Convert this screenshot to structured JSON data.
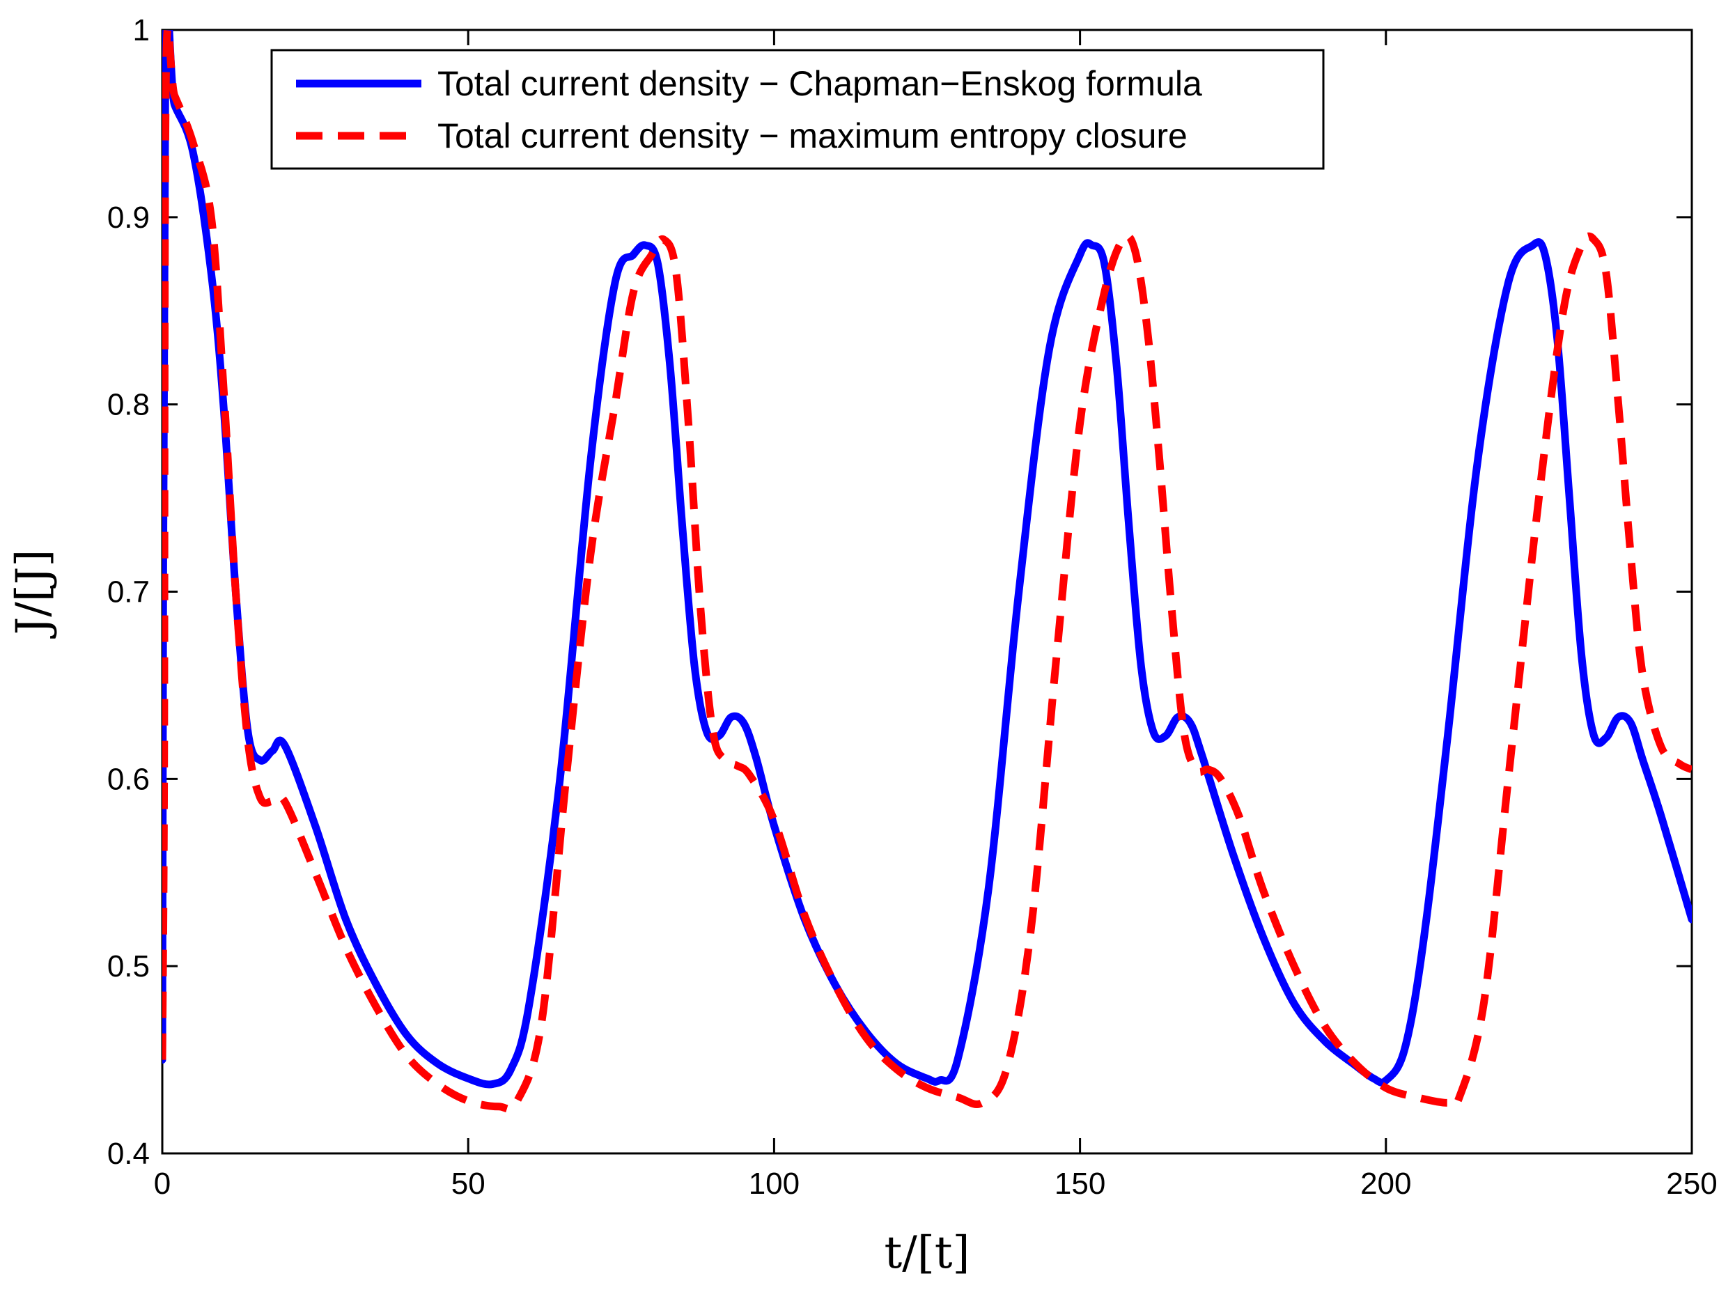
{
  "chart_data": {
    "type": "line",
    "title": "",
    "xlabel": "t/[t]",
    "ylabel": "J/[J]",
    "xlim": [
      0,
      250
    ],
    "ylim": [
      0.4,
      1.0
    ],
    "xticks": [
      0,
      50,
      100,
      150,
      200,
      250
    ],
    "yticks": [
      0.4,
      0.5,
      0.6,
      0.7,
      0.8,
      0.9,
      1.0
    ],
    "xtick_labels": [
      "0",
      "50",
      "100",
      "150",
      "200",
      "250"
    ],
    "ytick_labels": [
      "0.4",
      "0.5",
      "0.6",
      "0.7",
      "0.8",
      "0.9",
      "1"
    ],
    "legend_position": "top",
    "grid": false,
    "series": [
      {
        "name": "Total current density − Chapman−Enskog formula",
        "color": "#0000ff",
        "style": "solid",
        "x": [
          0,
          0.5,
          2,
          5,
          8,
          10,
          12,
          14,
          16,
          18,
          20,
          25,
          30,
          35,
          40,
          45,
          50,
          54,
          57,
          60,
          65,
          70,
          74,
          77,
          79,
          81,
          83,
          85,
          87,
          89,
          91,
          93,
          95,
          97,
          100,
          105,
          110,
          115,
          120,
          125,
          127,
          130,
          135,
          140,
          145,
          150,
          152,
          154,
          156,
          158,
          160,
          162,
          164,
          166,
          168,
          170,
          175,
          180,
          185,
          190,
          195,
          198,
          200,
          203,
          206,
          210,
          215,
          220,
          224,
          226,
          228,
          230,
          232,
          234,
          236,
          238,
          240,
          242,
          245,
          250
        ],
        "y": [
          0.45,
          0.975,
          0.96,
          0.935,
          0.87,
          0.8,
          0.7,
          0.625,
          0.61,
          0.615,
          0.618,
          0.575,
          0.525,
          0.49,
          0.463,
          0.448,
          0.44,
          0.437,
          0.445,
          0.48,
          0.6,
          0.77,
          0.865,
          0.88,
          0.885,
          0.875,
          0.82,
          0.735,
          0.66,
          0.625,
          0.623,
          0.633,
          0.63,
          0.612,
          0.575,
          0.525,
          0.49,
          0.465,
          0.448,
          0.44,
          0.439,
          0.45,
          0.54,
          0.7,
          0.83,
          0.88,
          0.885,
          0.875,
          0.82,
          0.735,
          0.66,
          0.625,
          0.623,
          0.633,
          0.63,
          0.612,
          0.56,
          0.515,
          0.48,
          0.46,
          0.447,
          0.44,
          0.439,
          0.455,
          0.51,
          0.62,
          0.77,
          0.865,
          0.885,
          0.88,
          0.835,
          0.75,
          0.665,
          0.623,
          0.622,
          0.633,
          0.63,
          0.61,
          0.58,
          0.525
        ]
      },
      {
        "name": "Total current density − maximum entropy closure",
        "color": "#ff0000",
        "style": "dashed",
        "x": [
          0,
          0.3,
          0.6,
          2,
          5,
          8,
          10,
          12,
          14,
          16,
          18,
          20,
          25,
          30,
          35,
          40,
          45,
          50,
          55,
          58,
          62,
          66,
          70,
          74,
          77,
          80,
          82,
          84,
          86,
          88,
          90,
          92,
          94,
          96,
          100,
          105,
          110,
          115,
          120,
          125,
          130,
          134,
          138,
          142,
          146,
          150,
          154,
          157,
          159,
          161,
          163,
          165,
          167,
          169,
          171,
          173,
          176,
          180,
          185,
          190,
          195,
          200,
          205,
          210,
          212,
          216,
          220,
          225,
          229,
          232,
          234,
          236,
          238,
          240,
          242,
          245,
          248,
          250
        ],
        "y": [
          0.45,
          0.6,
          0.975,
          0.965,
          0.94,
          0.9,
          0.81,
          0.7,
          0.62,
          0.59,
          0.588,
          0.588,
          0.55,
          0.51,
          0.478,
          0.452,
          0.437,
          0.428,
          0.425,
          0.428,
          0.47,
          0.6,
          0.72,
          0.8,
          0.86,
          0.88,
          0.888,
          0.87,
          0.79,
          0.69,
          0.625,
          0.61,
          0.607,
          0.602,
          0.578,
          0.527,
          0.49,
          0.462,
          0.445,
          0.435,
          0.43,
          0.427,
          0.445,
          0.52,
          0.66,
          0.79,
          0.86,
          0.888,
          0.882,
          0.84,
          0.77,
          0.69,
          0.625,
          0.605,
          0.605,
          0.6,
          0.58,
          0.54,
          0.5,
          0.468,
          0.448,
          0.435,
          0.43,
          0.427,
          0.43,
          0.48,
          0.6,
          0.75,
          0.85,
          0.885,
          0.888,
          0.87,
          0.8,
          0.72,
          0.655,
          0.617,
          0.608,
          0.605
        ]
      }
    ]
  }
}
